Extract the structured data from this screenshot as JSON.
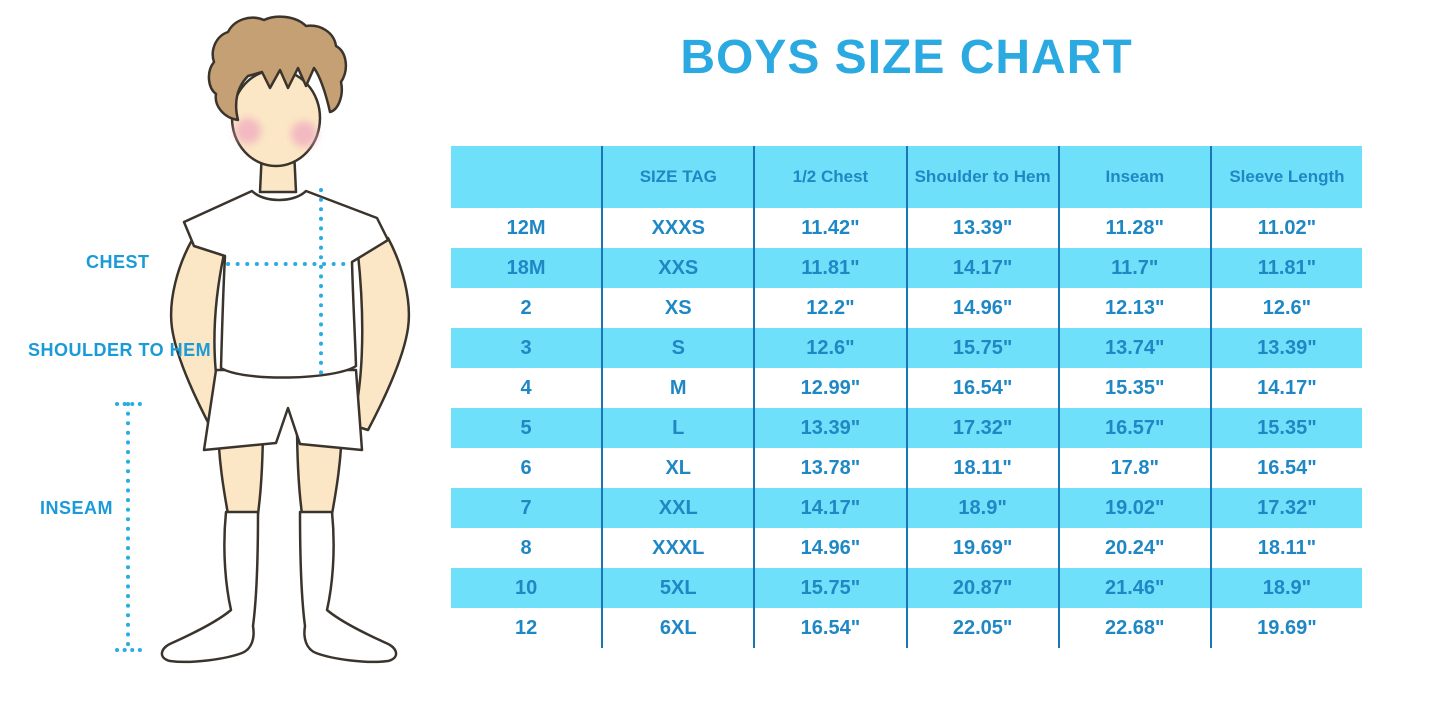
{
  "title": "BOYS SIZE CHART",
  "figure": {
    "labels": {
      "chest": "CHEST",
      "shoulder_to_hem": "SHOULDER TO HEM",
      "inseam": "INSEAM"
    }
  },
  "table": {
    "columns": [
      "",
      "SIZE TAG",
      "1/2 Chest",
      "Shoulder to Hem",
      "Inseam",
      "Sleeve Length"
    ],
    "rows": [
      [
        "12M",
        "XXXS",
        "11.42\"",
        "13.39\"",
        "11.28\"",
        "11.02\""
      ],
      [
        "18M",
        "XXS",
        "11.81\"",
        "14.17\"",
        "11.7\"",
        "11.81\""
      ],
      [
        "2",
        "XS",
        "12.2\"",
        "14.96\"",
        "12.13\"",
        "12.6\""
      ],
      [
        "3",
        "S",
        "12.6\"",
        "15.75\"",
        "13.74\"",
        "13.39\""
      ],
      [
        "4",
        "M",
        "12.99\"",
        "16.54\"",
        "15.35\"",
        "14.17\""
      ],
      [
        "5",
        "L",
        "13.39\"",
        "17.32\"",
        "16.57\"",
        "15.35\""
      ],
      [
        "6",
        "XL",
        "13.78\"",
        "18.11\"",
        "17.8\"",
        "16.54\""
      ],
      [
        "7",
        "XXL",
        "14.17\"",
        "18.9\"",
        "19.02\"",
        "17.32\""
      ],
      [
        "8",
        "XXXL",
        "14.96\"",
        "19.69\"",
        "20.24\"",
        "18.11\""
      ],
      [
        "10",
        "5XL",
        "15.75\"",
        "20.87\"",
        "21.46\"",
        "18.9\""
      ],
      [
        "12",
        "6XL",
        "16.54\"",
        "22.05\"",
        "22.68\"",
        "19.69\""
      ]
    ]
  },
  "colors": {
    "title": "#2BA9E1",
    "band": "#6FE0FA",
    "divider": "#1B76B7",
    "cell_text": "#1E87C4",
    "label_text": "#1B9AD8",
    "dotted_line": "#2BADE3",
    "skin": "#FBE7C5",
    "hair": "#C4A074",
    "cheek": "#F0AEC0"
  }
}
